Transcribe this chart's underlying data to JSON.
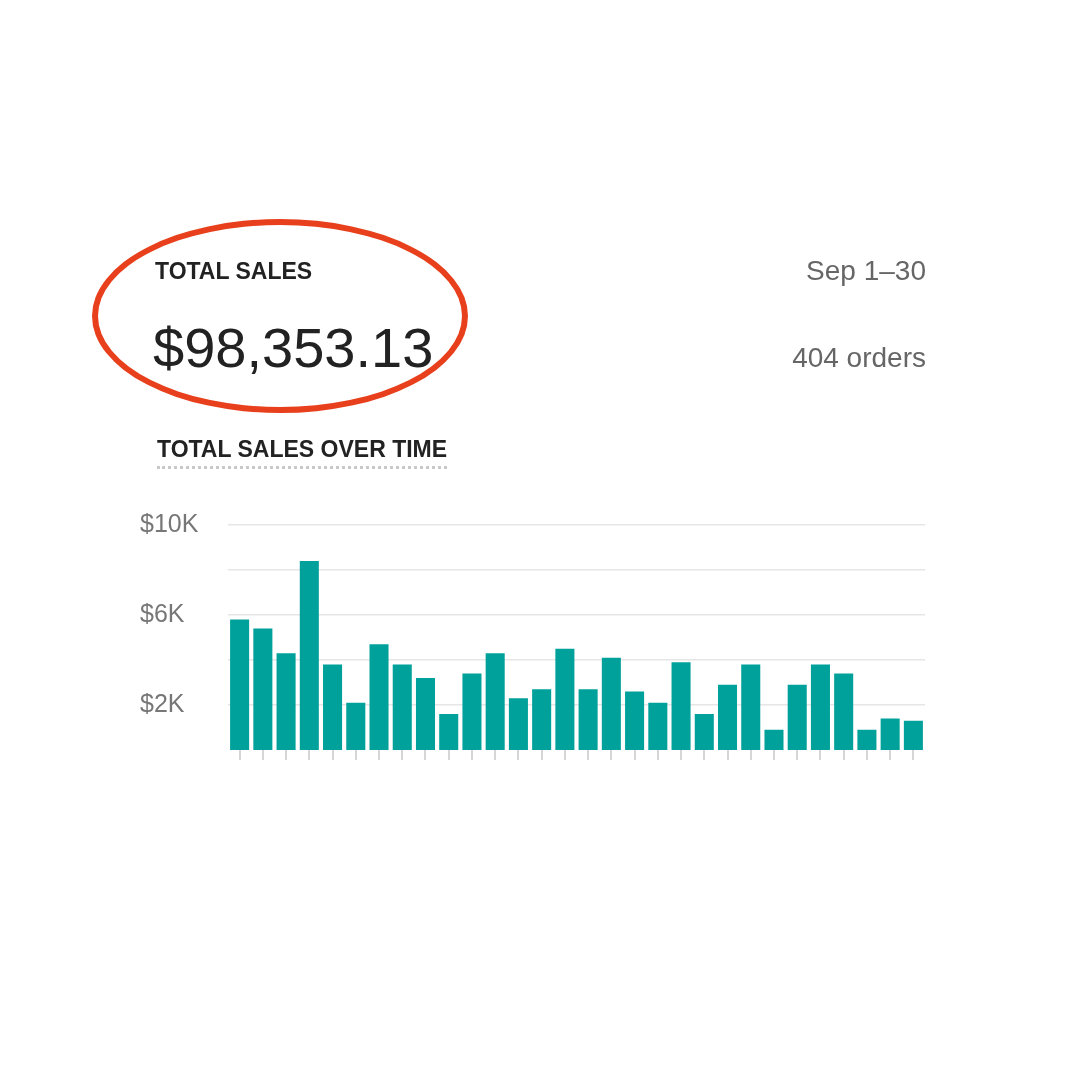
{
  "chart_data": {
    "type": "bar",
    "title": "TOTAL SALES OVER TIME",
    "annotations": [
      "TOTAL SALES",
      "$98,353.13",
      "Sep 1–30",
      "404 orders"
    ],
    "categories": [
      null,
      null,
      null,
      null,
      null,
      null,
      null,
      null,
      null,
      null,
      null,
      null,
      null,
      null,
      null,
      null,
      null,
      null,
      null,
      null,
      null,
      null,
      null,
      null,
      null,
      null,
      null,
      null,
      null,
      null
    ],
    "values": [
      5800,
      5400,
      4300,
      8400,
      3800,
      2100,
      4700,
      3800,
      3200,
      1600,
      3400,
      4300,
      2300,
      2700,
      4500,
      2700,
      4100,
      2600,
      2100,
      3900,
      1600,
      2900,
      3800,
      900,
      2900,
      3800,
      3400,
      900,
      1400,
      1300
    ],
    "color": "#00a19b",
    "ylim": [
      0,
      10000
    ],
    "yticks": [
      {
        "value": 2000,
        "label": "$2K"
      },
      {
        "value": 4000,
        "label": null
      },
      {
        "value": 6000,
        "label": "$6K"
      },
      {
        "value": 8000,
        "label": null
      },
      {
        "value": 10000,
        "label": "$10K"
      }
    ],
    "grid": "y"
  }
}
